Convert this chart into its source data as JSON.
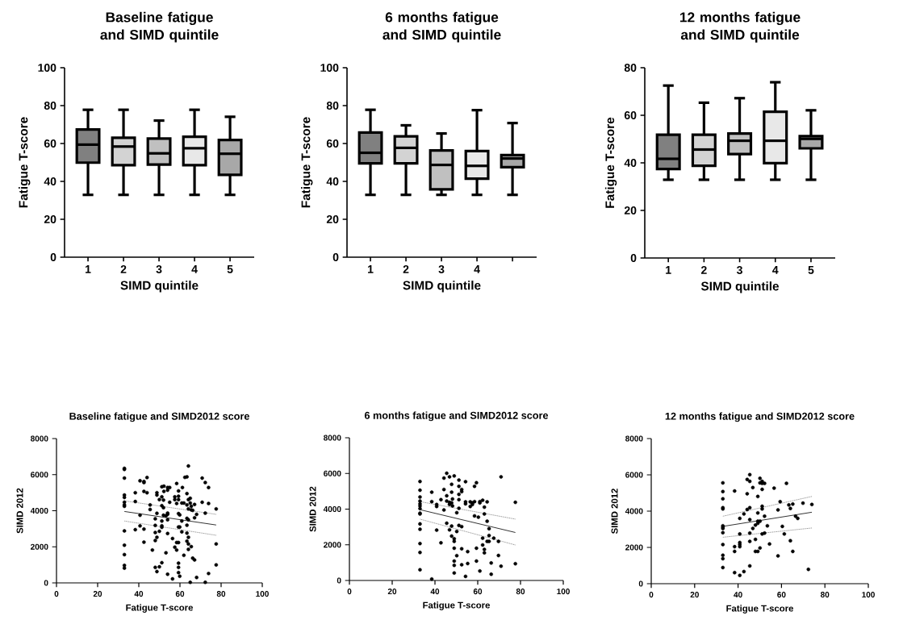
{
  "chart_data": [
    {
      "type": "box",
      "title": "Baseline fatigue and SIMD quintile",
      "xlabel": "SIMD quintile",
      "ylabel": "Fatigue T-score",
      "categories": [
        "1",
        "2",
        "3",
        "4",
        "5"
      ],
      "ylim": [
        0,
        100
      ],
      "yticks": [
        0,
        20,
        40,
        60,
        80,
        100
      ],
      "colors": [
        "#808080",
        "#d3d3d3",
        "#c0c0c0",
        "#e8e8e8",
        "#a8a8a8"
      ],
      "boxes": [
        {
          "low": 32.9,
          "q1": 49.9,
          "median": 59.4,
          "q3": 67.4,
          "high": 77.8
        },
        {
          "low": 32.9,
          "q1": 48.6,
          "median": 58.4,
          "q3": 63.0,
          "high": 77.8
        },
        {
          "low": 32.9,
          "q1": 48.9,
          "median": 54.8,
          "q3": 62.6,
          "high": 72.1
        },
        {
          "low": 32.9,
          "q1": 48.6,
          "median": 57.5,
          "q3": 63.6,
          "high": 77.8
        },
        {
          "low": 32.9,
          "q1": 43.5,
          "median": 54.6,
          "q3": 61.9,
          "high": 74.1
        }
      ]
    },
    {
      "type": "box",
      "title": "6 months fatigue and SIMD quintile",
      "xlabel": "SIMD quintile",
      "ylabel": "Fatigue T-score",
      "categories": [
        "1",
        "2",
        "3",
        "4",
        null
      ],
      "ylim": [
        0,
        100
      ],
      "yticks": [
        0,
        20,
        40,
        60,
        80,
        100
      ],
      "colors": [
        "#808080",
        "#d3d3d3",
        "#c0c0c0",
        "#e8e8e8",
        "#a8a8a8"
      ],
      "boxes": [
        {
          "low": 32.9,
          "q1": 49.5,
          "median": 55.1,
          "q3": 65.8,
          "high": 77.8
        },
        {
          "low": 32.9,
          "q1": 49.5,
          "median": 57.7,
          "q3": 63.8,
          "high": 69.6
        },
        {
          "low": 32.9,
          "q1": 35.8,
          "median": 48.7,
          "q3": 56.3,
          "high": 65.3
        },
        {
          "low": 32.9,
          "q1": 41.4,
          "median": 48.2,
          "q3": 56.0,
          "high": 77.6
        },
        {
          "low": 32.9,
          "q1": 47.5,
          "median": 52.1,
          "q3": 53.9,
          "high": 70.8
        }
      ]
    },
    {
      "type": "box",
      "title": "12 months fatigue and SIMD quintile",
      "xlabel": "SIMD quintile",
      "ylabel": "Fatigue T-score",
      "categories": [
        "1",
        "2",
        "3",
        "4",
        "5"
      ],
      "ylim": [
        0,
        80
      ],
      "yticks": [
        0,
        20,
        40,
        60,
        80
      ],
      "colors": [
        "#808080",
        "#d3d3d3",
        "#c0c0c0",
        "#e8e8e8",
        "#a8a8a8"
      ],
      "boxes": [
        {
          "low": 32.9,
          "q1": 37.4,
          "median": 41.7,
          "q3": 51.8,
          "high": 72.5
        },
        {
          "low": 32.9,
          "q1": 38.8,
          "median": 45.6,
          "q3": 51.8,
          "high": 65.3
        },
        {
          "low": 32.9,
          "q1": 43.7,
          "median": 49.3,
          "q3": 52.3,
          "high": 67.2
        },
        {
          "low": 32.9,
          "q1": 39.9,
          "median": 49.3,
          "q3": 61.5,
          "high": 73.9
        },
        {
          "low": 32.9,
          "q1": 46.1,
          "median": 50.1,
          "q3": 51.2,
          "high": 62.1
        }
      ]
    },
    {
      "type": "scatter",
      "title": "Baseline fatigue and SIMD2012 score",
      "xlabel": "Fatigue T-score",
      "ylabel": "SIMD 2012",
      "xlim": [
        0,
        100
      ],
      "ylim": [
        0,
        8000
      ],
      "xticks": [
        0,
        20,
        40,
        60,
        80,
        100
      ],
      "yticks": [
        0,
        2000,
        4000,
        6000,
        8000
      ],
      "series": [
        {
          "type": "scatter",
          "color": "#000000",
          "marker": "circle",
          "x": [
            33,
            33,
            33,
            33,
            33,
            33,
            33,
            33,
            33,
            33,
            33,
            33,
            33,
            38.3,
            38.3,
            38.3,
            40.6,
            40.6,
            40.6,
            42.5,
            42.5,
            42.5,
            42.5,
            42.5,
            44,
            44,
            45.5,
            45.5,
            46.6,
            48,
            48,
            48,
            48,
            48,
            48.8,
            48.8,
            48.8,
            48.8,
            48.8,
            50,
            50,
            50,
            51.2,
            51.2,
            51.2,
            51.2,
            51.2,
            51.2,
            51.2,
            52,
            52,
            52,
            52.2,
            52.2,
            53.2,
            53.2,
            54,
            54,
            54,
            54,
            54,
            54,
            54,
            55,
            55,
            56.4,
            56.4,
            57.5,
            57.5,
            57.5,
            58.4,
            58.4,
            58.4,
            58.4,
            59.3,
            59.3,
            59.3,
            59.3,
            59.3,
            59.3,
            59.3,
            59.3,
            59.3,
            59.9,
            59.9,
            59.9,
            60.9,
            60.9,
            60.9,
            61.2,
            61.9,
            61.9,
            62.4,
            63.4,
            63.4,
            63.4,
            63.4,
            63.4,
            63.4,
            63.4,
            64.1,
            64.1,
            64.1,
            64.1,
            64.1,
            64.1,
            64.1,
            65,
            65,
            65,
            65.5,
            65.5,
            65.5,
            66.2,
            66.2,
            67.1,
            67.1,
            67.1,
            68.1,
            68.1,
            70.8,
            70.8,
            72.3,
            72.3,
            72.3,
            73.9,
            73.9,
            73.9,
            77.6,
            77.6,
            77.6
          ],
          "values": [
            6350,
            6290,
            5810,
            4870,
            4740,
            4470,
            4320,
            4250,
            2880,
            2090,
            1570,
            970,
            820,
            5000,
            4510,
            2950,
            5660,
            3750,
            3160,
            5620,
            5560,
            5070,
            2980,
            2260,
            5840,
            5000,
            4320,
            4070,
            1820,
            3550,
            3190,
            2790,
            2350,
            860,
            5000,
            4870,
            3860,
            2530,
            630,
            4620,
            2860,
            890,
            5330,
            4770,
            4280,
            3430,
            3160,
            3080,
            1120,
            4590,
            4170,
            3750,
            5360,
            5070,
            3720,
            1670,
            5290,
            5140,
            3870,
            3800,
            3500,
            2740,
            480,
            5290,
            4470,
            2460,
            220,
            4770,
            4620,
            1980,
            5510,
            4400,
            2240,
            1820,
            5100,
            4800,
            4620,
            3840,
            3100,
            2240,
            1090,
            860,
            570,
            3770,
            3100,
            370,
            4430,
            3430,
            2830,
            5290,
            4430,
            1530,
            5850,
            5880,
            4950,
            4320,
            3580,
            3200,
            2760,
            2310,
            6480,
            4620,
            4100,
            3500,
            2530,
            2160,
            1860,
            4690,
            4430,
            30,
            4250,
            4050,
            2010,
            4020,
            1370,
            4350,
            3610,
            1270,
            3800,
            300,
            5810,
            4470,
            5560,
            3870,
            30,
            5290,
            4400,
            520,
            4100,
            2160,
            1000
          ]
        },
        {
          "type": "line",
          "color": "#000000",
          "line_style": "solid",
          "x": [
            33,
            77.6
          ],
          "values": [
            3960,
            3210
          ]
        },
        {
          "type": "line",
          "color": "#808080",
          "line_style": "dotted",
          "x": [
            33,
            77.6
          ],
          "values": [
            4550,
            3800
          ]
        },
        {
          "type": "line",
          "color": "#808080",
          "line_style": "dotted",
          "x": [
            33,
            77.6
          ],
          "values": [
            3430,
            2640
          ]
        }
      ]
    },
    {
      "type": "scatter",
      "title": "6 months fatigue and SIMD2012 score",
      "xlabel": "Fatigue T-score",
      "ylabel": "SIMD 2012",
      "xlim": [
        0,
        100
      ],
      "ylim": [
        0,
        8000
      ],
      "xticks": [
        0,
        20,
        40,
        60,
        80,
        100
      ],
      "yticks": [
        0,
        2000,
        4000,
        6000,
        8000
      ],
      "series": [
        {
          "type": "scatter",
          "color": "#000000",
          "marker": "circle",
          "x": [
            33,
            33,
            33,
            33,
            33,
            33,
            33,
            33,
            33,
            33,
            33,
            33,
            33,
            33,
            38.5,
            38.5,
            38.5,
            40.8,
            40.8,
            40.8,
            42.8,
            42.8,
            44.2,
            44.2,
            44.2,
            45.5,
            45.5,
            45.5,
            45.5,
            46.8,
            46.8,
            46.8,
            46.8,
            47.8,
            47.8,
            47.8,
            47.8,
            47.8,
            48.2,
            48.2,
            49,
            49,
            49,
            49,
            49,
            49,
            49,
            50.2,
            50.2,
            50.2,
            51.2,
            51.2,
            51.2,
            51.2,
            51.2,
            51.2,
            52.5,
            52.5,
            52.5,
            52.5,
            52.5,
            54.3,
            54.3,
            54.3,
            54.3,
            55.3,
            55.3,
            56.5,
            56.5,
            57.5,
            57.5,
            58.5,
            58.5,
            58.5,
            59.4,
            59.4,
            59.4,
            60.3,
            61,
            61,
            61,
            62.3,
            62.3,
            62.3,
            63.1,
            63.1,
            63.1,
            63.1,
            64.4,
            64.4,
            64.4,
            65.3,
            65.3,
            65.3,
            66.3,
            66.3,
            67.5,
            69.7,
            69.7,
            70.9,
            70.9,
            77.6,
            77.6
          ],
          "values": [
            5550,
            5060,
            4680,
            4450,
            4300,
            4180,
            4030,
            3770,
            3730,
            3170,
            2870,
            2070,
            1570,
            600,
            4950,
            4420,
            80,
            4260,
            4150,
            2820,
            4530,
            2110,
            5740,
            5100,
            3950,
            6010,
            4750,
            4450,
            3210,
            5810,
            4380,
            4260,
            2840,
            5390,
            4950,
            4350,
            3050,
            2490,
            4570,
            4180,
            5860,
            2340,
            2190,
            1810,
            1090,
            850,
            420,
            3800,
            2750,
            1390,
            5630,
            5280,
            4830,
            4530,
            4050,
            3090,
            5100,
            4980,
            3020,
            1780,
            880,
            5540,
            4410,
            4300,
            230,
            1620,
            950,
            4410,
            4150,
            4350,
            4260,
            5280,
            4420,
            3620,
            5480,
            1810,
            1090,
            3550,
            4420,
            4350,
            530,
            4500,
            2370,
            1990,
            4110,
            3730,
            1740,
            1550,
            4410,
            3320,
            2190,
            2900,
            2520,
            2190,
            980,
            350,
            2370,
            2190,
            1400,
            5810,
            800,
            4380,
            940
          ]
        },
        {
          "type": "line",
          "color": "#000000",
          "line_style": "solid",
          "x": [
            33,
            77.6
          ],
          "values": [
            3970,
            2690
          ]
        },
        {
          "type": "line",
          "color": "#808080",
          "line_style": "dotted",
          "x": [
            33,
            77.6
          ],
          "values": [
            4420,
            3440
          ]
        },
        {
          "type": "line",
          "color": "#808080",
          "line_style": "dotted",
          "x": [
            33,
            77.6
          ],
          "values": [
            3440,
            1990
          ]
        }
      ]
    },
    {
      "type": "scatter",
      "title": "12 months fatigue and SIMD2012 score",
      "xlabel": "Fatigue T-score",
      "ylabel": "SIMD 2012",
      "xlim": [
        0,
        100
      ],
      "ylim": [
        0,
        8000
      ],
      "xticks": [
        0,
        20,
        40,
        60,
        80,
        100
      ],
      "yticks": [
        0,
        2000,
        4000,
        6000,
        8000
      ],
      "series": [
        {
          "type": "scatter",
          "color": "#000000",
          "marker": "circle",
          "x": [
            33,
            33,
            33,
            33,
            33,
            33,
            33,
            33,
            33,
            33,
            33,
            33,
            33,
            38.4,
            38.4,
            38.4,
            38.4,
            40.8,
            40.8,
            40.8,
            40.8,
            40.8,
            40.8,
            42.7,
            42.7,
            44.2,
            44.2,
            44.2,
            45.4,
            45.4,
            45.4,
            45.4,
            45.4,
            45.4,
            45.4,
            46.8,
            46.8,
            48,
            48,
            48,
            49.1,
            49.1,
            49.1,
            49.1,
            49.1,
            50.1,
            50.1,
            50.1,
            50.1,
            51.1,
            51.1,
            51.1,
            51.1,
            51.1,
            51.1,
            52.2,
            52.2,
            52.2,
            53.5,
            54.5,
            56.6,
            58.4,
            58.4,
            59.4,
            60.4,
            61.3,
            62.3,
            63.4,
            64.1,
            64.1,
            65.2,
            65.2,
            66.5,
            67.5,
            69.9,
            72.4,
            74
          ],
          "values": [
            5560,
            5080,
            4680,
            4190,
            4120,
            3190,
            3110,
            3040,
            2810,
            2160,
            1570,
            1380,
            890,
            5110,
            2040,
            1780,
            610,
            3600,
            2740,
            2270,
            2160,
            2040,
            460,
            3850,
            670,
            5750,
            4960,
            4090,
            6010,
            5640,
            4190,
            3530,
            2790,
            2330,
            980,
            5300,
            3050,
            3230,
            2440,
            1780,
            4810,
            3900,
            3450,
            3330,
            1780,
            5810,
            5560,
            3450,
            1970,
            5640,
            5530,
            5200,
            4270,
            4120,
            2740,
            5530,
            3720,
            2790,
            3190,
            2190,
            5270,
            4070,
            1530,
            4520,
            3160,
            2740,
            5530,
            4340,
            4150,
            2370,
            4390,
            1780,
            3720,
            3600,
            4440,
            790,
            4370
          ]
        },
        {
          "type": "line",
          "color": "#000000",
          "line_style": "solid",
          "x": [
            33,
            74
          ],
          "values": [
            3160,
            3940
          ]
        },
        {
          "type": "line",
          "color": "#808080",
          "line_style": "dotted",
          "x": [
            33,
            74
          ],
          "values": [
            3720,
            4810
          ]
        },
        {
          "type": "line",
          "color": "#808080",
          "line_style": "dotted",
          "x": [
            33,
            74
          ],
          "values": [
            2560,
            3070
          ]
        }
      ]
    }
  ]
}
